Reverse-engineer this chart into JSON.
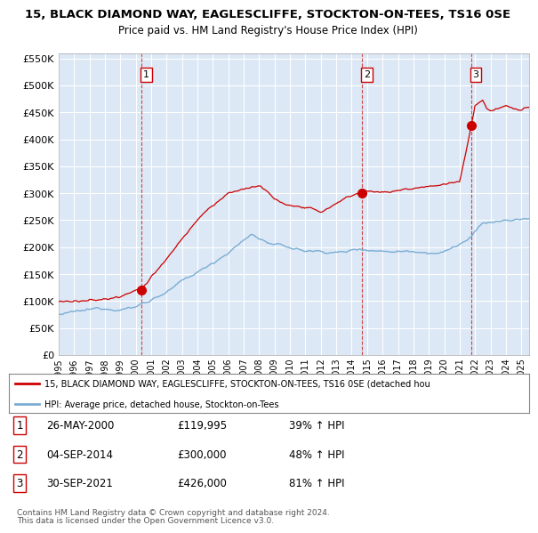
{
  "title1": "15, BLACK DIAMOND WAY, EAGLESCLIFFE, STOCKTON-ON-TEES, TS16 0SE",
  "title2": "Price paid vs. HM Land Registry's House Price Index (HPI)",
  "plot_bg_color": "#dce8f5",
  "hpi_color": "#7aadd4",
  "price_color": "#cc0000",
  "yticks": [
    0,
    50000,
    100000,
    150000,
    200000,
    250000,
    300000,
    350000,
    400000,
    450000,
    500000,
    550000
  ],
  "ylabels": [
    "£0",
    "£50K",
    "£100K",
    "£150K",
    "£200K",
    "£250K",
    "£300K",
    "£350K",
    "£400K",
    "£450K",
    "£500K",
    "£550K"
  ],
  "xstart": 1995,
  "xend": 2025,
  "sale_dates": [
    2000.38,
    2014.67,
    2021.75
  ],
  "sale_prices": [
    119995,
    300000,
    426000
  ],
  "sale_labels": [
    "1",
    "2",
    "3"
  ],
  "legend_red_label": "15, BLACK DIAMOND WAY, EAGLESCLIFFE, STOCKTON-ON-TEES, TS16 0SE (detached hou",
  "legend_blue_label": "HPI: Average price, detached house, Stockton-on-Tees",
  "table_rows": [
    [
      "1",
      "26-MAY-2000",
      "£119,995",
      "39% ↑ HPI"
    ],
    [
      "2",
      "04-SEP-2014",
      "£300,000",
      "48% ↑ HPI"
    ],
    [
      "3",
      "30-SEP-2021",
      "£426,000",
      "81% ↑ HPI"
    ]
  ],
  "footer1": "Contains HM Land Registry data © Crown copyright and database right 2024.",
  "footer2": "This data is licensed under the Open Government Licence v3.0."
}
